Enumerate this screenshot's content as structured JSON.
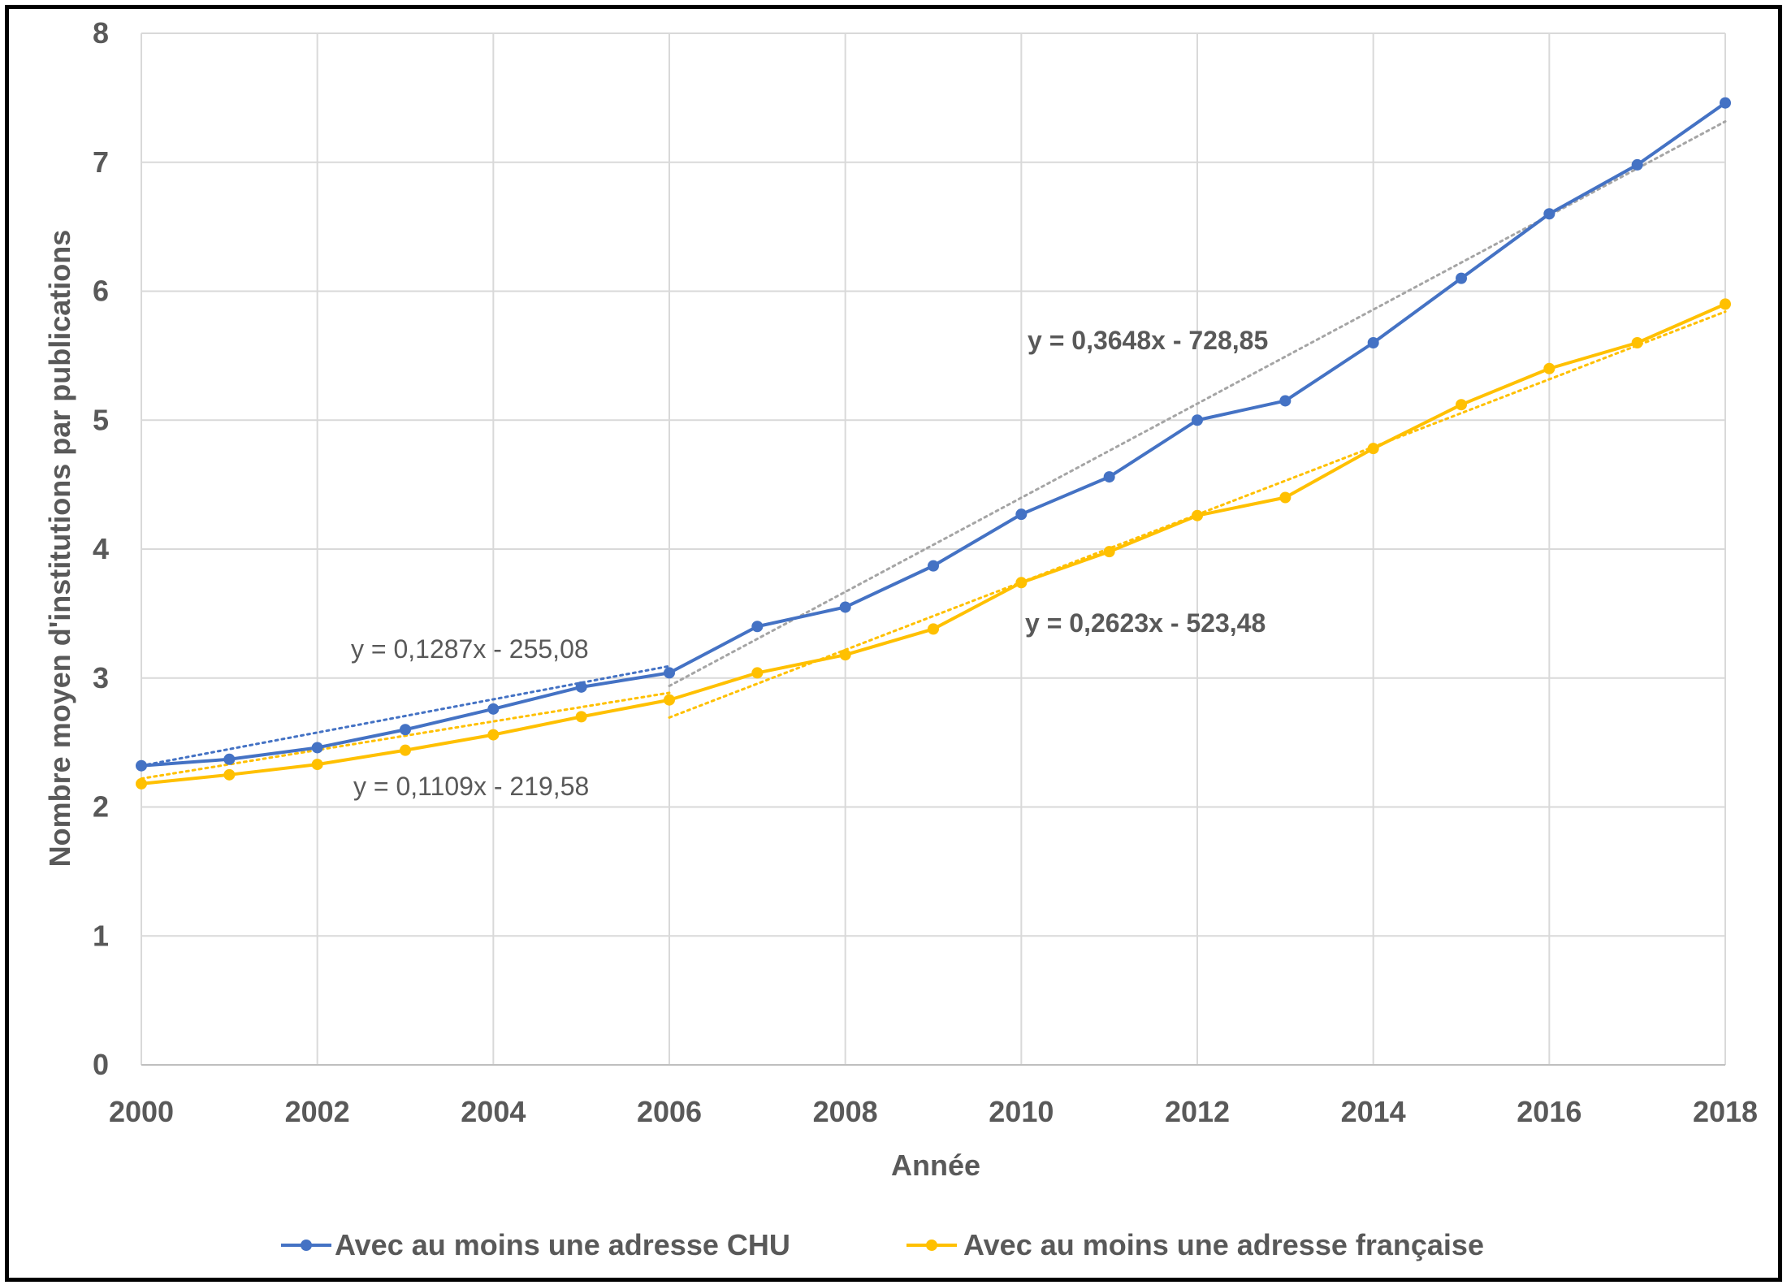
{
  "chart_data": {
    "type": "line",
    "title": "",
    "xlabel": "Année",
    "ylabel": "Nombre moyen d'institutions par publications",
    "xlim": [
      2000,
      2018
    ],
    "ylim": [
      0,
      8
    ],
    "x_ticks": [
      "2000",
      "2002",
      "2004",
      "2006",
      "2008",
      "2010",
      "2012",
      "2014",
      "2016",
      "2018"
    ],
    "y_ticks": [
      "0",
      "1",
      "2",
      "3",
      "4",
      "5",
      "6",
      "7",
      "8"
    ],
    "grid": true,
    "legend_position": "bottom",
    "x": [
      2000,
      2001,
      2002,
      2003,
      2004,
      2005,
      2006,
      2007,
      2008,
      2009,
      2010,
      2011,
      2012,
      2013,
      2014,
      2015,
      2016,
      2017,
      2018
    ],
    "series": [
      {
        "name": "Avec au moins une adresse CHU",
        "color": "#4472C4",
        "values": [
          2.32,
          2.37,
          2.46,
          2.6,
          2.76,
          2.93,
          3.04,
          3.4,
          3.55,
          3.87,
          4.27,
          4.56,
          5.0,
          5.15,
          5.6,
          6.1,
          6.6,
          6.98,
          7.46
        ]
      },
      {
        "name": "Avec au moins une adresse française",
        "color": "#FFC000",
        "values": [
          2.18,
          2.25,
          2.33,
          2.44,
          2.56,
          2.7,
          2.83,
          3.04,
          3.18,
          3.38,
          3.74,
          3.98,
          4.26,
          4.4,
          4.78,
          5.12,
          5.4,
          5.6,
          5.9
        ]
      }
    ],
    "trendlines": [
      {
        "series": "Avec au moins une adresse CHU",
        "equation": "y = 0,1287x - 255,08",
        "slope": 0.1287,
        "intercept": -255.08,
        "x_range": [
          2000,
          2006
        ],
        "color": "#4472C4",
        "bold": false
      },
      {
        "series": "Avec au moins une adresse française",
        "equation": "y = 0,1109x - 219,58",
        "slope": 0.1109,
        "intercept": -219.58,
        "x_range": [
          2000,
          2006
        ],
        "color": "#FFC000",
        "bold": false
      },
      {
        "series": "Avec au moins une adresse CHU",
        "equation": "y = 0,3648x - 728,85",
        "slope": 0.3648,
        "intercept": -728.85,
        "x_range": [
          2006,
          2018
        ],
        "color": "#A5A5A5",
        "bold": true
      },
      {
        "series": "Avec au moins une adresse française",
        "equation": "y = 0,2623x - 523,48",
        "slope": 0.2623,
        "intercept": -523.48,
        "x_range": [
          2006,
          2018
        ],
        "color": "#FFC000",
        "bold": true
      }
    ]
  }
}
